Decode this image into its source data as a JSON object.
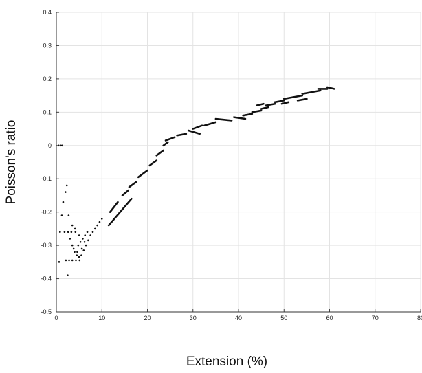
{
  "chart_data": {
    "type": "scatter",
    "title": "",
    "xlabel": "Extension (%)",
    "ylabel": "Poisson's ratio",
    "xlim": [
      0,
      80
    ],
    "ylim": [
      -0.5,
      0.4
    ],
    "x_ticks": [
      0,
      10,
      20,
      30,
      40,
      50,
      60,
      70,
      80
    ],
    "x_tick_labels": [
      "0",
      "10",
      "20",
      "30",
      "40",
      "50",
      "60",
      "70",
      "80"
    ],
    "y_ticks": [
      -0.5,
      -0.4,
      -0.3,
      -0.2,
      -0.1,
      0,
      0.1,
      0.2,
      0.3,
      0.4
    ],
    "y_tick_labels": [
      "-0.5",
      "-0.4",
      "-0.3",
      "-0.2",
      "-0.1",
      "0",
      "0.1",
      "0.2",
      "0.3",
      "0.4"
    ],
    "grid": true,
    "marker_color": "#111111",
    "series": [
      {
        "points": [
          [
            0.5,
            0.0
          ],
          [
            1.0,
            0.0
          ],
          [
            1.3,
            0.0
          ],
          [
            0.6,
            -0.35
          ],
          [
            0.8,
            -0.26
          ],
          [
            1.2,
            -0.21
          ],
          [
            1.5,
            -0.17
          ],
          [
            2.0,
            -0.14
          ],
          [
            2.3,
            -0.12
          ],
          [
            2.5,
            -0.39
          ],
          [
            1.8,
            -0.26
          ],
          [
            2.6,
            -0.26
          ],
          [
            3.3,
            -0.26
          ],
          [
            4.2,
            -0.26
          ],
          [
            2.1,
            -0.345
          ],
          [
            2.8,
            -0.345
          ],
          [
            3.5,
            -0.345
          ],
          [
            4.3,
            -0.345
          ],
          [
            5.1,
            -0.345
          ],
          [
            2.7,
            -0.21
          ],
          [
            3.5,
            -0.24
          ],
          [
            4.1,
            -0.25
          ],
          [
            5.0,
            -0.27
          ],
          [
            3.0,
            -0.28
          ],
          [
            3.5,
            -0.3
          ],
          [
            4.0,
            -0.32
          ],
          [
            4.5,
            -0.33
          ],
          [
            5.0,
            -0.335
          ],
          [
            5.5,
            -0.33
          ],
          [
            6.0,
            -0.315
          ],
          [
            6.5,
            -0.3
          ],
          [
            7.0,
            -0.285
          ],
          [
            7.5,
            -0.27
          ],
          [
            8.0,
            -0.26
          ],
          [
            8.5,
            -0.25
          ],
          [
            9.0,
            -0.24
          ],
          [
            9.5,
            -0.23
          ],
          [
            10.0,
            -0.22
          ],
          [
            4.8,
            -0.3
          ],
          [
            5.3,
            -0.29
          ],
          [
            5.8,
            -0.28
          ],
          [
            6.3,
            -0.27
          ],
          [
            6.8,
            -0.26
          ],
          [
            3.8,
            -0.31
          ],
          [
            4.6,
            -0.32
          ],
          [
            5.6,
            -0.31
          ],
          [
            6.2,
            -0.29
          ]
        ],
        "segments": [
          [
            [
              11.5,
              -0.24
            ],
            [
              16.5,
              -0.16
            ]
          ],
          [
            [
              11.8,
              -0.2
            ],
            [
              13.5,
              -0.17
            ]
          ],
          [
            [
              14.5,
              -0.15
            ],
            [
              15.8,
              -0.135
            ]
          ],
          [
            [
              16.0,
              -0.125
            ],
            [
              17.5,
              -0.11
            ]
          ],
          [
            [
              18.0,
              -0.095
            ],
            [
              20.0,
              -0.075
            ]
          ],
          [
            [
              20.5,
              -0.06
            ],
            [
              22.0,
              -0.045
            ]
          ],
          [
            [
              22.0,
              -0.03
            ],
            [
              23.5,
              -0.015
            ]
          ],
          [
            [
              23.5,
              0.0
            ],
            [
              24.5,
              0.01
            ]
          ],
          [
            [
              24.0,
              0.015
            ],
            [
              26.0,
              0.025
            ]
          ],
          [
            [
              26.5,
              0.03
            ],
            [
              28.5,
              0.035
            ]
          ],
          [
            [
              29.0,
              0.045
            ],
            [
              31.5,
              0.035
            ]
          ],
          [
            [
              30.0,
              0.05
            ],
            [
              32.0,
              0.06
            ]
          ],
          [
            [
              32.5,
              0.06
            ],
            [
              35.0,
              0.07
            ]
          ],
          [
            [
              35.0,
              0.08
            ],
            [
              38.5,
              0.075
            ]
          ],
          [
            [
              39.0,
              0.085
            ],
            [
              41.5,
              0.08
            ]
          ],
          [
            [
              41.0,
              0.09
            ],
            [
              43.0,
              0.095
            ]
          ],
          [
            [
              43.0,
              0.1
            ],
            [
              45.0,
              0.105
            ]
          ],
          [
            [
              45.0,
              0.11
            ],
            [
              46.5,
              0.115
            ]
          ],
          [
            [
              46.0,
              0.12
            ],
            [
              48.0,
              0.125
            ]
          ],
          [
            [
              48.0,
              0.13
            ],
            [
              50.0,
              0.135
            ]
          ],
          [
            [
              50.0,
              0.14
            ],
            [
              52.0,
              0.145
            ]
          ],
          [
            [
              52.0,
              0.145
            ],
            [
              54.0,
              0.15
            ]
          ],
          [
            [
              54.0,
              0.155
            ],
            [
              56.0,
              0.16
            ]
          ],
          [
            [
              56.0,
              0.16
            ],
            [
              58.0,
              0.165
            ]
          ],
          [
            [
              57.5,
              0.17
            ],
            [
              59.5,
              0.17
            ]
          ],
          [
            [
              59.5,
              0.175
            ],
            [
              61.0,
              0.17
            ]
          ],
          [
            [
              44.0,
              0.12
            ],
            [
              45.5,
              0.125
            ]
          ],
          [
            [
              49.5,
              0.125
            ],
            [
              51.0,
              0.13
            ]
          ],
          [
            [
              53.0,
              0.135
            ],
            [
              55.0,
              0.14
            ]
          ]
        ]
      }
    ]
  }
}
